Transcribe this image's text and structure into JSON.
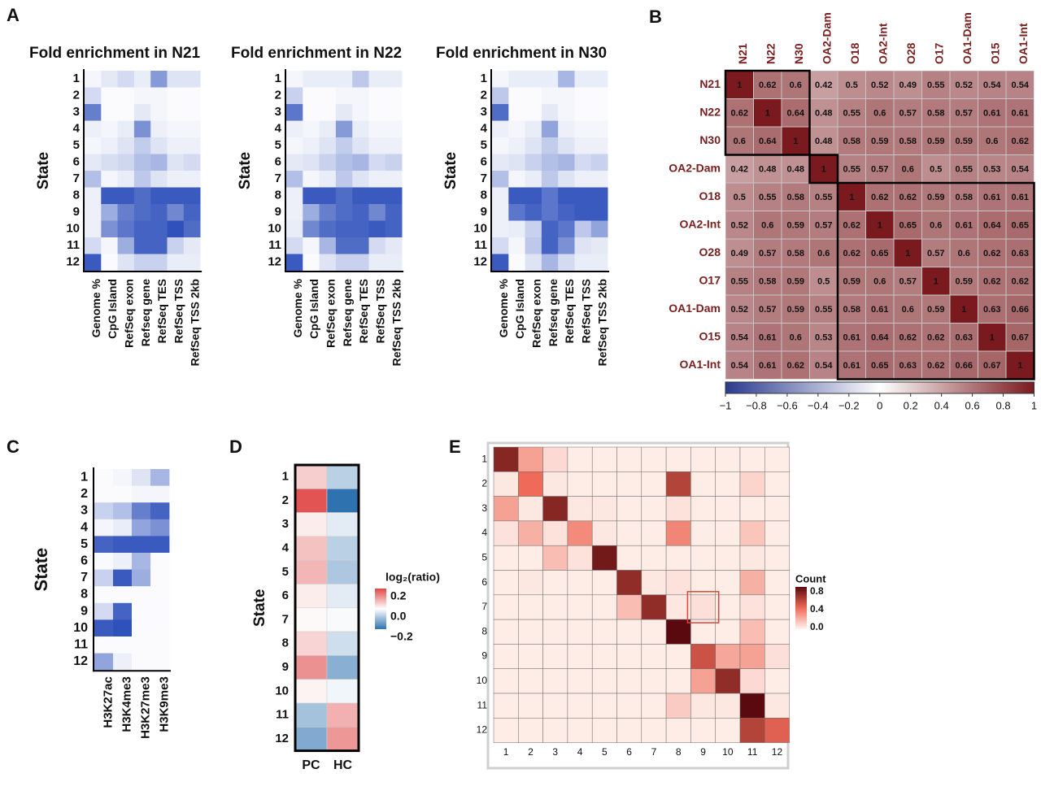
{
  "panels": {
    "A": "A",
    "B": "B",
    "C": "C",
    "D": "D",
    "E": "E"
  },
  "chart_data": [
    {
      "id": "A1",
      "type": "heatmap",
      "title": "Fold enrichment in N21",
      "ylabel": "State",
      "rows": [
        "1",
        "2",
        "3",
        "4",
        "5",
        "6",
        "7",
        "8",
        "9",
        "10",
        "11",
        "12"
      ],
      "columns": [
        "Genome %",
        "CpG Island",
        "RefSeq exon",
        "Refseq gene",
        "RefSeq TES",
        "RefSeq TSS",
        "RefSeq TSS 2kb"
      ],
      "values": [
        [
          0.05,
          0.12,
          0.2,
          0.1,
          0.55,
          0.15,
          0.15
        ],
        [
          0.2,
          0.02,
          0.02,
          0.05,
          0.05,
          0.02,
          0.02
        ],
        [
          0.7,
          0.02,
          0.02,
          0.12,
          0.05,
          0.02,
          0.02
        ],
        [
          0.08,
          0.05,
          0.1,
          0.6,
          0.08,
          0.05,
          0.05
        ],
        [
          0.05,
          0.08,
          0.15,
          0.28,
          0.15,
          0.08,
          0.08
        ],
        [
          0.12,
          0.18,
          0.22,
          0.35,
          0.4,
          0.15,
          0.2
        ],
        [
          0.35,
          0.05,
          0.1,
          0.3,
          0.15,
          0.08,
          0.08
        ],
        [
          0.08,
          0.9,
          0.9,
          0.8,
          0.9,
          0.9,
          0.9
        ],
        [
          0.08,
          0.45,
          0.7,
          0.8,
          0.85,
          0.65,
          0.85
        ],
        [
          0.08,
          0.6,
          0.75,
          0.85,
          0.85,
          0.95,
          0.8
        ],
        [
          0.2,
          0.05,
          0.45,
          0.85,
          0.85,
          0.25,
          0.12
        ],
        [
          0.9,
          0.02,
          0.15,
          0.25,
          0.25,
          0.1,
          0.1
        ]
      ]
    },
    {
      "id": "A2",
      "type": "heatmap",
      "title": "Fold enrichment in N22",
      "ylabel": "State",
      "rows": [
        "1",
        "2",
        "3",
        "4",
        "5",
        "6",
        "7",
        "8",
        "9",
        "10",
        "11",
        "12"
      ],
      "columns": [
        "Genome %",
        "CpG Island",
        "RefSeq exon",
        "Refseq gene",
        "RefSeq TES",
        "RefSeq TSS",
        "RefSeq TSS 2kb"
      ],
      "values": [
        [
          0.05,
          0.1,
          0.1,
          0.1,
          0.3,
          0.1,
          0.1
        ],
        [
          0.25,
          0.02,
          0.02,
          0.05,
          0.05,
          0.02,
          0.02
        ],
        [
          0.75,
          0.02,
          0.02,
          0.12,
          0.05,
          0.02,
          0.02
        ],
        [
          0.08,
          0.05,
          0.1,
          0.55,
          0.1,
          0.05,
          0.05
        ],
        [
          0.05,
          0.08,
          0.15,
          0.28,
          0.15,
          0.08,
          0.08
        ],
        [
          0.12,
          0.15,
          0.25,
          0.35,
          0.4,
          0.2,
          0.25
        ],
        [
          0.35,
          0.05,
          0.1,
          0.3,
          0.15,
          0.08,
          0.08
        ],
        [
          0.08,
          0.9,
          0.9,
          0.8,
          0.9,
          0.9,
          0.9
        ],
        [
          0.08,
          0.45,
          0.7,
          0.8,
          0.85,
          0.65,
          0.85
        ],
        [
          0.1,
          0.65,
          0.8,
          0.85,
          0.85,
          0.9,
          0.85
        ],
        [
          0.2,
          0.05,
          0.4,
          0.8,
          0.8,
          0.2,
          0.12
        ],
        [
          0.9,
          0.02,
          0.15,
          0.25,
          0.25,
          0.1,
          0.1
        ]
      ]
    },
    {
      "id": "A3",
      "type": "heatmap",
      "title": "Fold enrichment in N30",
      "ylabel": "State",
      "rows": [
        "1",
        "2",
        "3",
        "4",
        "5",
        "6",
        "7",
        "8",
        "9",
        "10",
        "11",
        "12"
      ],
      "columns": [
        "Genome %",
        "CpG Island",
        "RefSeq exon",
        "Refseq gene",
        "RefSeq TES",
        "RefSeq TSS",
        "RefSeq TSS 2kb"
      ],
      "values": [
        [
          0.05,
          0.1,
          0.1,
          0.1,
          0.4,
          0.1,
          0.1
        ],
        [
          0.3,
          0.02,
          0.02,
          0.05,
          0.05,
          0.02,
          0.02
        ],
        [
          0.8,
          0.02,
          0.02,
          0.12,
          0.05,
          0.02,
          0.02
        ],
        [
          0.08,
          0.05,
          0.1,
          0.5,
          0.08,
          0.05,
          0.05
        ],
        [
          0.05,
          0.08,
          0.15,
          0.28,
          0.15,
          0.08,
          0.08
        ],
        [
          0.12,
          0.15,
          0.25,
          0.35,
          0.4,
          0.2,
          0.25
        ],
        [
          0.35,
          0.05,
          0.1,
          0.3,
          0.15,
          0.08,
          0.08
        ],
        [
          0.08,
          0.9,
          0.9,
          0.75,
          0.9,
          0.9,
          0.9
        ],
        [
          0.08,
          0.75,
          0.85,
          0.75,
          0.85,
          0.9,
          0.9
        ],
        [
          0.08,
          0.1,
          0.25,
          0.85,
          0.75,
          0.3,
          0.5
        ],
        [
          0.2,
          0.05,
          0.3,
          0.85,
          0.6,
          0.15,
          0.12
        ],
        [
          0.9,
          0.02,
          0.15,
          0.4,
          0.2,
          0.1,
          0.1
        ]
      ]
    },
    {
      "id": "B",
      "type": "heatmap",
      "labels": [
        "N21",
        "N22",
        "N30",
        "OA2-Dam",
        "O18",
        "OA2-Int",
        "O28",
        "O17",
        "OA1-Dam",
        "O15",
        "OA1-Int"
      ],
      "values": [
        [
          "1",
          "0.62",
          "0.6",
          "0.42",
          "0.5",
          "0.52",
          "0.49",
          "0.55",
          "0.52",
          "0.54",
          "0.54"
        ],
        [
          "0.62",
          "1",
          "0.64",
          "0.48",
          "0.55",
          "0.6",
          "0.57",
          "0.58",
          "0.57",
          "0.61",
          "0.61"
        ],
        [
          "0.6",
          "0.64",
          "1",
          "0.48",
          "0.58",
          "0.59",
          "0.58",
          "0.59",
          "0.59",
          "0.6",
          "0.62"
        ],
        [
          "0.42",
          "0.48",
          "0.48",
          "1",
          "0.55",
          "0.57",
          "0.6",
          "0.5",
          "0.55",
          "0.53",
          "0.54"
        ],
        [
          "0.5",
          "0.55",
          "0.58",
          "0.55",
          "1",
          "0.62",
          "0.62",
          "0.59",
          "0.58",
          "0.61",
          "0.61"
        ],
        [
          "0.52",
          "0.6",
          "0.59",
          "0.57",
          "0.62",
          "1",
          "0.65",
          "0.6",
          "0.61",
          "0.64",
          "0.65"
        ],
        [
          "0.49",
          "0.57",
          "0.58",
          "0.6",
          "0.62",
          "0.65",
          "1",
          "0.57",
          "0.6",
          "0.62",
          "0.63"
        ],
        [
          "0.55",
          "0.58",
          "0.59",
          "0.5",
          "0.59",
          "0.6",
          "0.57",
          "1",
          "0.59",
          "0.62",
          "0.62"
        ],
        [
          "0.52",
          "0.57",
          "0.59",
          "0.55",
          "0.58",
          "0.61",
          "0.6",
          "0.59",
          "1",
          "0.63",
          "0.66"
        ],
        [
          "0.54",
          "0.61",
          "0.6",
          "0.53",
          "0.61",
          "0.64",
          "0.62",
          "0.62",
          "0.63",
          "1",
          "0.67"
        ],
        [
          "0.54",
          "0.61",
          "0.62",
          "0.54",
          "0.61",
          "0.65",
          "0.63",
          "0.62",
          "0.66",
          "0.67",
          "1"
        ]
      ],
      "colorbar_ticks": [
        "−1",
        "−0.8",
        "−0.6",
        "−0.4",
        "−0.2",
        "0",
        "0.2",
        "0.4",
        "0.6",
        "0.8",
        "1"
      ],
      "range": [
        -1,
        1
      ],
      "colors": {
        "low": "#2b3a8f",
        "mid": "#ffffff",
        "high": "#7a1a1e"
      }
    },
    {
      "id": "C",
      "type": "heatmap",
      "ylabel": "State",
      "rows": [
        "1",
        "2",
        "3",
        "4",
        "5",
        "6",
        "7",
        "8",
        "9",
        "10",
        "11",
        "12"
      ],
      "columns": [
        "H3K27ac",
        "H3K4me3",
        "H3K27me3",
        "H3K9me3"
      ],
      "values": [
        [
          0.02,
          0.05,
          0.15,
          0.4
        ],
        [
          0.02,
          0.02,
          0.05,
          0.05
        ],
        [
          0.25,
          0.35,
          0.7,
          0.85
        ],
        [
          0.05,
          0.1,
          0.5,
          0.6
        ],
        [
          0.85,
          0.9,
          0.9,
          0.9
        ],
        [
          0.03,
          0.08,
          0.4,
          0.02
        ],
        [
          0.25,
          0.9,
          0.45,
          0.02
        ],
        [
          0.02,
          0.02,
          0.02,
          0.02
        ],
        [
          0.2,
          0.85,
          0.02,
          0.02
        ],
        [
          0.9,
          0.95,
          0.02,
          0.02
        ],
        [
          0.02,
          0.02,
          0.02,
          0.02
        ],
        [
          0.5,
          0.08,
          0.02,
          0.02
        ]
      ]
    },
    {
      "id": "D",
      "type": "heatmap",
      "ylabel": "State",
      "legend_title": "log₂(ratio)",
      "legend_ticks": [
        "0.2",
        "0.0",
        "−0.2"
      ],
      "rows": [
        "1",
        "2",
        "3",
        "4",
        "5",
        "6",
        "7",
        "8",
        "9",
        "10",
        "11",
        "12"
      ],
      "columns": [
        "PC",
        "HC"
      ],
      "values": [
        [
          0.08,
          -0.1
        ],
        [
          0.28,
          -0.32
        ],
        [
          0.03,
          -0.04
        ],
        [
          0.1,
          -0.1
        ],
        [
          0.12,
          -0.12
        ],
        [
          0.03,
          -0.04
        ],
        [
          0.01,
          -0.01
        ],
        [
          0.07,
          -0.07
        ],
        [
          0.18,
          -0.17
        ],
        [
          0.02,
          -0.02
        ],
        [
          -0.13,
          0.13
        ],
        [
          -0.18,
          0.17
        ]
      ],
      "range": [
        -0.3,
        0.3
      ]
    },
    {
      "id": "E",
      "type": "heatmap",
      "legend_title": "Count",
      "legend_ticks": [
        "0.8",
        "0.4",
        "0.0"
      ],
      "x": [
        "1",
        "2",
        "3",
        "4",
        "5",
        "6",
        "7",
        "8",
        "9",
        "10",
        "11",
        "12"
      ],
      "y": [
        "1",
        "2",
        "3",
        "4",
        "5",
        "6",
        "7",
        "8",
        "9",
        "10",
        "11",
        "12"
      ],
      "values": [
        [
          0.85,
          0.3,
          0.1,
          0.03,
          0.03,
          0.03,
          0.03,
          0.03,
          0.03,
          0.03,
          0.03,
          0.03
        ],
        [
          0.05,
          0.5,
          0.05,
          0.03,
          0.03,
          0.03,
          0.03,
          0.7,
          0.03,
          0.03,
          0.12,
          0.03
        ],
        [
          0.3,
          0.05,
          0.85,
          0.05,
          0.05,
          0.03,
          0.03,
          0.07,
          0.03,
          0.03,
          0.03,
          0.03
        ],
        [
          0.07,
          0.25,
          0.07,
          0.38,
          0.05,
          0.03,
          0.03,
          0.4,
          0.03,
          0.03,
          0.17,
          0.03
        ],
        [
          0.03,
          0.03,
          0.2,
          0.07,
          0.92,
          0.03,
          0.03,
          0.03,
          0.03,
          0.03,
          0.05,
          0.03
        ],
        [
          0.03,
          0.05,
          0.03,
          0.03,
          0.03,
          0.82,
          0.05,
          0.07,
          0.03,
          0.03,
          0.25,
          0.03
        ],
        [
          0.03,
          0.03,
          0.03,
          0.03,
          0.03,
          0.2,
          0.82,
          0.05,
          0.08,
          0.03,
          0.07,
          0.03
        ],
        [
          0.03,
          0.03,
          0.03,
          0.03,
          0.03,
          0.03,
          0.03,
          1.0,
          0.03,
          0.03,
          0.2,
          0.03
        ],
        [
          0.03,
          0.03,
          0.03,
          0.03,
          0.03,
          0.03,
          0.03,
          0.03,
          0.62,
          0.28,
          0.3,
          0.08
        ],
        [
          0.03,
          0.03,
          0.03,
          0.03,
          0.03,
          0.03,
          0.03,
          0.03,
          0.3,
          0.82,
          0.1,
          0.03
        ],
        [
          0.03,
          0.03,
          0.03,
          0.03,
          0.03,
          0.03,
          0.03,
          0.15,
          0.05,
          0.05,
          1.0,
          0.05
        ],
        [
          0.03,
          0.03,
          0.03,
          0.03,
          0.03,
          0.03,
          0.03,
          0.03,
          0.03,
          0.03,
          0.7,
          0.55
        ]
      ],
      "highlight": {
        "row": "7",
        "col": "9"
      },
      "range": [
        0,
        1
      ]
    }
  ]
}
